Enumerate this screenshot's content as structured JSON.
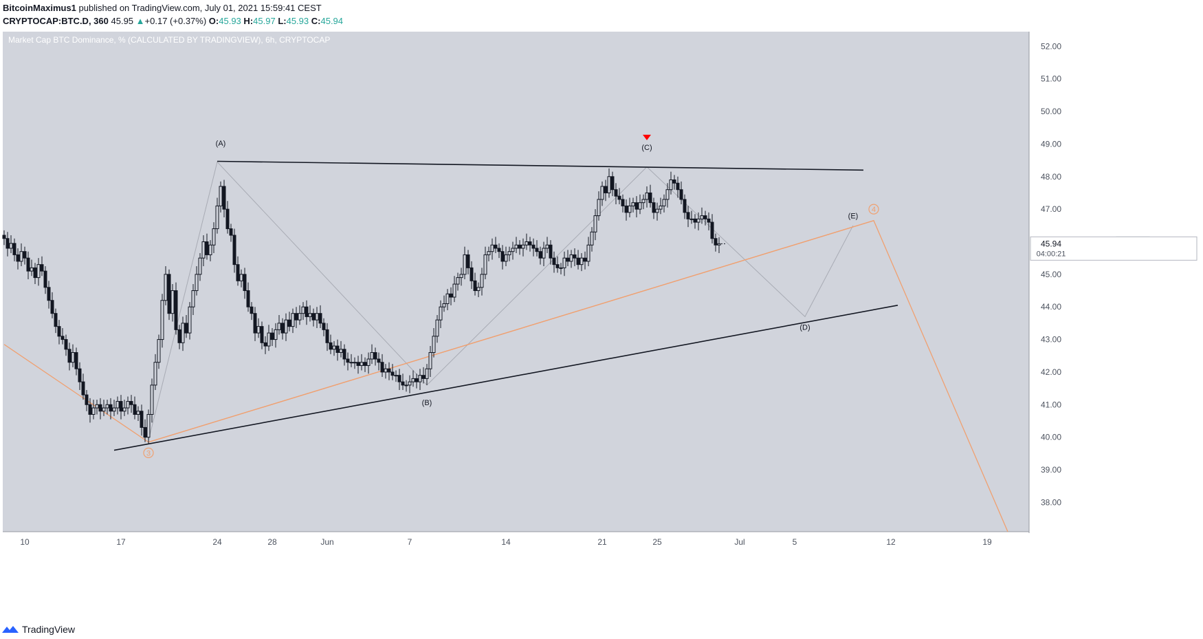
{
  "header": {
    "author": "BitcoinMaximus1",
    "published_text": "published on TradingView.com, July 01, 2021 15:59:41 CEST",
    "symbol": "CRYPTOCAP:BTC.D, 360",
    "last": "45.95",
    "change_arrow": "▲",
    "change": "+0.17 (+0.37%)",
    "o_label": "O:",
    "o_value": "45.93",
    "h_label": "H:",
    "h_value": "45.97",
    "l_label": "L:",
    "l_value": "45.93",
    "c_label": "C:",
    "c_value": "45.94"
  },
  "footer": {
    "brand": "TradingView",
    "icon": "tradingview-logo-icon"
  },
  "chart_data": {
    "type": "candlestick",
    "title": "Market Cap BTC Dominance, % (CALCULATED BY TRADINGVIEW), 6h, CRYPTOCAP",
    "x_tick_labels": [
      "10",
      "17",
      "24",
      "28",
      "Jun",
      "7",
      "14",
      "21",
      "25",
      "Jul",
      "5",
      "12",
      "19"
    ],
    "y_tick_labels": [
      "52.00",
      "51.00",
      "50.00",
      "49.00",
      "48.00",
      "47.00",
      "46.00",
      "45.00",
      "44.00",
      "43.00",
      "42.00",
      "41.00",
      "40.00",
      "39.00",
      "38.00"
    ],
    "ylim": [
      37.1,
      52.45
    ],
    "price_label": {
      "symbol": "BTC.D",
      "value": "45.94",
      "countdown": "04:00:21",
      "y": 45.94
    },
    "colors": {
      "background": "#d1d4dc",
      "candle": "#131722",
      "orange": "#f0a070",
      "trendline": "#131722",
      "signal": "#ff0000"
    },
    "closes": [
      46.1,
      45.8,
      45.95,
      45.6,
      45.4,
      45.7,
      45.5,
      45.1,
      45.2,
      44.9,
      45.3,
      45.1,
      44.6,
      44.2,
      43.8,
      43.4,
      43.1,
      43.0,
      42.7,
      42.3,
      42.6,
      42.1,
      41.7,
      41.3,
      41.0,
      40.7,
      40.9,
      41.0,
      40.8,
      40.9,
      41.0,
      40.8,
      40.9,
      41.1,
      40.8,
      40.9,
      41.1,
      41.0,
      40.7,
      40.8,
      40.3,
      40.0,
      40.7,
      41.6,
      42.3,
      43.0,
      44.2,
      45.0,
      43.8,
      44.5,
      43.3,
      42.9,
      43.5,
      43.2,
      44.0,
      44.5,
      45.0,
      45.5,
      46.0,
      45.6,
      45.9,
      46.4,
      47.1,
      47.7,
      47.0,
      46.4,
      46.2,
      45.3,
      44.8,
      45.0,
      44.5,
      44.0,
      43.8,
      43.2,
      43.4,
      42.9,
      42.8,
      43.2,
      43.0,
      43.3,
      43.5,
      43.2,
      43.6,
      43.4,
      43.8,
      43.6,
      43.8,
      44.0,
      43.7,
      43.8,
      43.6,
      43.8,
      43.5,
      43.3,
      42.9,
      42.7,
      42.8,
      42.6,
      42.7,
      42.4,
      42.3,
      42.3,
      42.3,
      42.2,
      42.3,
      42.2,
      42.4,
      42.6,
      42.4,
      42.3,
      42.0,
      42.1,
      42.0,
      41.9,
      41.9,
      41.7,
      41.6,
      41.6,
      41.7,
      41.8,
      41.7,
      41.9,
      41.8,
      42.1,
      42.6,
      43.1,
      43.6,
      44.0,
      44.1,
      44.4,
      44.3,
      44.7,
      44.9,
      45.0,
      45.6,
      45.2,
      44.8,
      44.5,
      44.6,
      45.0,
      45.6,
      45.7,
      45.9,
      45.8,
      45.7,
      45.4,
      45.6,
      45.7,
      45.8,
      45.9,
      45.8,
      45.9,
      46.0,
      45.9,
      45.8,
      45.7,
      45.5,
      45.8,
      45.9,
      45.5,
      45.3,
      45.2,
      45.2,
      45.5,
      45.4,
      45.6,
      45.5,
      45.3,
      45.5,
      45.4,
      45.9,
      46.3,
      46.8,
      47.3,
      47.7,
      47.5,
      48.0,
      47.6,
      47.4,
      47.3,
      47.1,
      46.9,
      47.1,
      47.2,
      47.0,
      47.2,
      47.3,
      47.5,
      47.2,
      46.9,
      47.0,
      47.1,
      47.3,
      47.6,
      47.9,
      47.8,
      47.6,
      47.3,
      46.9,
      46.7,
      46.7,
      46.6,
      46.7,
      46.8,
      46.7,
      46.6,
      46.1,
      45.9,
      45.94
    ],
    "annotations": [
      {
        "label": "(A)",
        "at_index": 63,
        "y": 48.95
      },
      {
        "label": "(B)",
        "at_index": 123,
        "y": 40.98
      },
      {
        "label": "(C)",
        "at_index": 187,
        "y": 48.82
      },
      {
        "label": "(D)",
        "at_index": 233,
        "y": 43.3
      },
      {
        "label": "(E)",
        "at_index": 247,
        "y": 46.72
      },
      {
        "label": "3",
        "at_index": 42,
        "y": 39.52,
        "style": "circle-orange"
      },
      {
        "label": "4",
        "at_index": 253,
        "y": 47.0,
        "style": "circle-orange"
      }
    ],
    "trendlines": [
      {
        "name": "upper-resistance",
        "from": {
          "index": 62,
          "y": 48.47
        },
        "to": {
          "index": 250,
          "y": 48.2
        }
      },
      {
        "name": "lower-support",
        "from": {
          "index": 32,
          "y": 39.6
        },
        "to": {
          "index": 260,
          "y": 44.05
        }
      },
      {
        "name": "orange-wave-line",
        "from": {
          "index": 42,
          "y": 39.85
        },
        "to": {
          "index": 253,
          "y": 46.65
        }
      }
    ],
    "wave_path_gray": [
      {
        "index": 42,
        "y": 39.9
      },
      {
        "index": 62,
        "y": 48.45
      },
      {
        "index": 123,
        "y": 41.6
      },
      {
        "index": 187,
        "y": 48.3
      },
      {
        "index": 233,
        "y": 43.7
      },
      {
        "index": 247,
        "y": 46.5
      }
    ],
    "wave_path_orange": [
      {
        "index": 0,
        "y": 42.85
      },
      {
        "index": 42,
        "y": 39.85
      },
      {
        "index": 253,
        "y": 46.65
      },
      {
        "index": 292,
        "y": 37.1
      }
    ],
    "signal_marker": {
      "at_index": 187,
      "y": 49.2
    }
  }
}
